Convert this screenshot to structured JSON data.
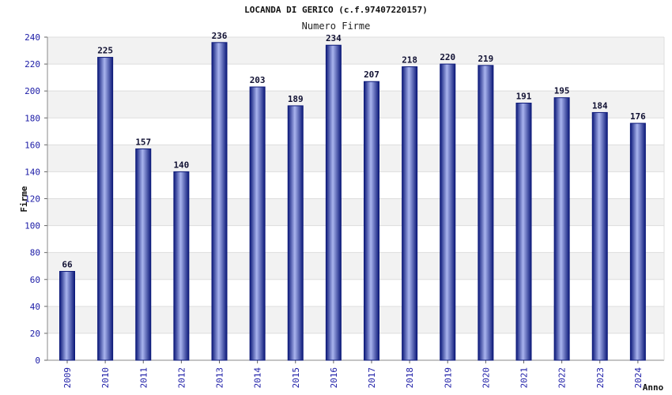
{
  "chart_data": {
    "type": "bar",
    "title": "LOCANDA DI GERICO (c.f.97407220157)",
    "subtitle": "Numero Firme",
    "xlabel": "Anno",
    "ylabel": "Firme",
    "categories": [
      "2009",
      "2010",
      "2011",
      "2012",
      "2013",
      "2014",
      "2015",
      "2016",
      "2017",
      "2018",
      "2019",
      "2020",
      "2021",
      "2022",
      "2023",
      "2024"
    ],
    "values": [
      66,
      225,
      157,
      140,
      236,
      203,
      189,
      234,
      207,
      218,
      220,
      219,
      191,
      195,
      184,
      176
    ],
    "ylim": [
      0,
      240
    ],
    "ytick_step": 20,
    "grid": true,
    "legend": "none",
    "colors": {
      "bar_dark": "#0d1a7a",
      "bar_light": "#a9b4ee",
      "band": "#f2f2f2",
      "tick_text": "#1a1aa6"
    }
  }
}
